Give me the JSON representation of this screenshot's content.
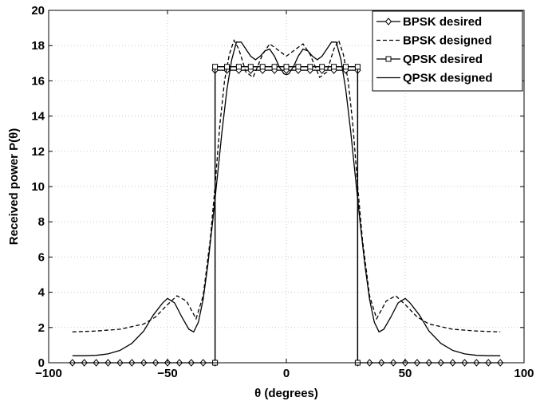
{
  "chart_data": {
    "type": "line",
    "title": "",
    "xlabel": "θ (degrees)",
    "ylabel": "Received power  P(θ)",
    "xlim": [
      -100,
      100
    ],
    "ylim": [
      0,
      20
    ],
    "xticks": [
      -100,
      -50,
      0,
      50,
      100
    ],
    "xtick_labels": [
      "−100",
      "−50",
      "0",
      "50",
      "100"
    ],
    "yticks": [
      0,
      2,
      4,
      6,
      8,
      10,
      12,
      14,
      16,
      18,
      20
    ],
    "ytick_labels": [
      "0",
      "2",
      "4",
      "6",
      "8",
      "10",
      "12",
      "14",
      "16",
      "18",
      "20"
    ],
    "grid": true,
    "legend_position": "top-right",
    "series": [
      {
        "name": "BPSK desired",
        "style": "solid",
        "marker": "diamond",
        "color": "#000000",
        "x": [
          -90,
          -85,
          -80,
          -75,
          -70,
          -65,
          -60,
          -55,
          -50,
          -45,
          -40,
          -35,
          -30,
          -30,
          -25,
          -20,
          -15,
          -10,
          -5,
          0,
          5,
          10,
          15,
          20,
          25,
          30,
          30,
          35,
          40,
          45,
          50,
          55,
          60,
          65,
          70,
          75,
          80,
          85,
          90
        ],
        "y": [
          0,
          0,
          0,
          0,
          0,
          0,
          0,
          0,
          0,
          0,
          0,
          0,
          0,
          16.6,
          16.6,
          16.6,
          16.6,
          16.6,
          16.6,
          16.6,
          16.6,
          16.6,
          16.6,
          16.6,
          16.6,
          16.6,
          0,
          0,
          0,
          0,
          0,
          0,
          0,
          0,
          0,
          0,
          0,
          0,
          0
        ]
      },
      {
        "name": "BPSK designed",
        "style": "dashed",
        "marker": "none",
        "color": "#000000",
        "x": [
          -90,
          -80,
          -70,
          -60,
          -55,
          -50,
          -46,
          -42,
          -38,
          -35,
          -32,
          -30,
          -28,
          -26,
          -24,
          -22,
          -20,
          -17,
          -14,
          -10,
          -7,
          -4,
          0,
          4,
          7,
          10,
          14,
          17,
          20,
          22,
          24,
          26,
          28,
          30,
          32,
          35,
          38,
          42,
          46,
          50,
          55,
          60,
          70,
          80,
          90
        ],
        "y": [
          1.75,
          1.8,
          1.9,
          2.2,
          2.6,
          3.3,
          3.8,
          3.5,
          2.5,
          3.8,
          7.0,
          10.0,
          13.5,
          16.0,
          17.5,
          18.3,
          17.8,
          16.5,
          16.2,
          17.5,
          18.1,
          17.8,
          17.4,
          17.8,
          18.1,
          17.5,
          16.2,
          16.5,
          17.8,
          18.3,
          17.5,
          16.0,
          13.5,
          10.0,
          7.0,
          3.8,
          2.5,
          3.5,
          3.8,
          3.3,
          2.6,
          2.2,
          1.9,
          1.8,
          1.75
        ]
      },
      {
        "name": "QPSK desired",
        "style": "solid",
        "marker": "square",
        "color": "#000000",
        "x": [
          -30,
          -30,
          -25,
          -20,
          -15,
          -10,
          -5,
          0,
          5,
          10,
          15,
          20,
          25,
          30,
          30
        ],
        "y": [
          0,
          16.8,
          16.8,
          16.8,
          16.8,
          16.8,
          16.8,
          16.8,
          16.8,
          16.8,
          16.8,
          16.8,
          16.8,
          16.8,
          0
        ]
      },
      {
        "name": "QPSK designed",
        "style": "solid",
        "marker": "none",
        "color": "#000000",
        "x": [
          -90,
          -85,
          -80,
          -75,
          -70,
          -65,
          -60,
          -56,
          -52,
          -50,
          -47,
          -44,
          -41,
          -39,
          -37,
          -35,
          -33,
          -31,
          -29,
          -27,
          -25,
          -23,
          -21,
          -19,
          -17,
          -15,
          -13,
          -11,
          -9,
          -7,
          -5,
          -3,
          -1,
          0,
          1,
          3,
          5,
          7,
          9,
          11,
          13,
          15,
          17,
          19,
          21,
          23,
          25,
          27,
          29,
          31,
          33,
          35,
          37,
          39,
          41,
          44,
          47,
          50,
          52,
          56,
          60,
          65,
          70,
          75,
          80,
          85,
          90
        ],
        "y": [
          0.4,
          0.4,
          0.42,
          0.5,
          0.7,
          1.1,
          1.8,
          2.7,
          3.4,
          3.65,
          3.4,
          2.6,
          1.9,
          1.75,
          2.3,
          3.6,
          5.6,
          8.0,
          10.6,
          13.2,
          15.5,
          17.2,
          18.2,
          18.2,
          17.8,
          17.4,
          17.2,
          17.4,
          17.7,
          17.8,
          17.4,
          16.8,
          16.4,
          16.35,
          16.4,
          16.8,
          17.4,
          17.8,
          17.7,
          17.4,
          17.2,
          17.4,
          17.8,
          18.2,
          18.2,
          17.2,
          15.5,
          13.2,
          10.6,
          8.0,
          5.6,
          3.6,
          2.3,
          1.75,
          1.9,
          2.6,
          3.4,
          3.65,
          3.4,
          2.7,
          1.8,
          1.1,
          0.7,
          0.5,
          0.42,
          0.4,
          0.4
        ]
      }
    ]
  }
}
